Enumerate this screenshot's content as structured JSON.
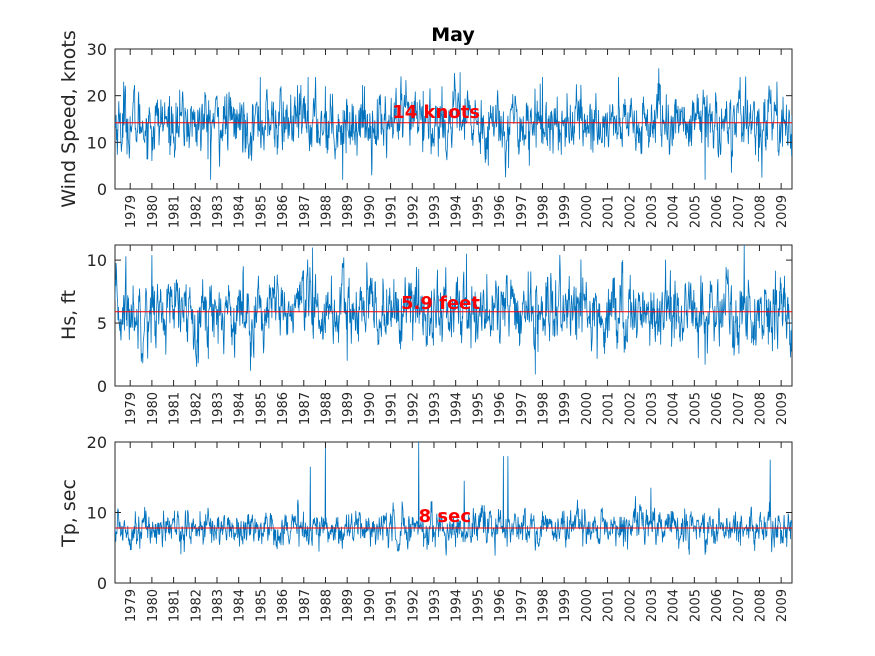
{
  "chart_data": [
    {
      "type": "line",
      "title": "May",
      "ylabel": "Wind Speed, knots",
      "ylim": [
        0,
        30
      ],
      "yticks": [
        0,
        10,
        20,
        30
      ],
      "xlim": [
        1978.7,
        2009.9
      ],
      "xtick_labels": [
        "1979",
        "1980",
        "1981",
        "1982",
        "1983",
        "1984",
        "1985",
        "1986",
        "1987",
        "1988",
        "1989",
        "1990",
        "1991",
        "1992",
        "1993",
        "1994",
        "1995",
        "1996",
        "1997",
        "1998",
        "1999",
        "2000",
        "2001",
        "2002",
        "2003",
        "2004",
        "2005",
        "2006",
        "2007",
        "2008",
        "2009"
      ],
      "series": [
        {
          "color": "#0072bd",
          "mean": 14.2,
          "spread": 3.2,
          "events": [
            {
              "x": 1979.0,
              "y": 8
            },
            {
              "x": 1979.1,
              "y": 23
            },
            {
              "x": 1980.4,
              "y": 6
            },
            {
              "x": 1983.1,
              "y": 2
            },
            {
              "x": 1985.4,
              "y": 24
            },
            {
              "x": 1987.6,
              "y": 24
            },
            {
              "x": 1988.4,
              "y": 22
            },
            {
              "x": 1989.2,
              "y": 2
            },
            {
              "x": 1990.2,
              "y": 22
            },
            {
              "x": 1992.9,
              "y": 21
            },
            {
              "x": 1994.6,
              "y": 25
            },
            {
              "x": 1995.9,
              "y": 5
            },
            {
              "x": 1997.8,
              "y": 5
            },
            {
              "x": 1998.4,
              "y": 24
            },
            {
              "x": 2001.9,
              "y": 24
            },
            {
              "x": 2005.9,
              "y": 2
            },
            {
              "x": 2007.5,
              "y": 24
            },
            {
              "x": 2009.2,
              "y": 23
            }
          ]
        },
        {
          "color": "#ff0000",
          "type": "hline",
          "y": 14.2
        }
      ],
      "annotation": {
        "text": "14 knots",
        "x": 1993.5,
        "y": 16.5
      }
    },
    {
      "type": "line",
      "ylabel": "Hs, ft",
      "ylim": [
        0,
        11.2
      ],
      "yticks": [
        0,
        5,
        10
      ],
      "xlim": [
        1978.7,
        2009.9
      ],
      "xtick_labels": [
        "1979",
        "1980",
        "1981",
        "1982",
        "1983",
        "1984",
        "1985",
        "1986",
        "1987",
        "1988",
        "1989",
        "1990",
        "1991",
        "1992",
        "1993",
        "1994",
        "1995",
        "1996",
        "1997",
        "1998",
        "1999",
        "2000",
        "2001",
        "2002",
        "2003",
        "2004",
        "2005",
        "2006",
        "2007",
        "2008",
        "2009"
      ],
      "series": [
        {
          "color": "#0072bd",
          "mean": 5.9,
          "spread": 1.3,
          "events": [
            {
              "x": 1979.2,
              "y": 10.3
            },
            {
              "x": 1980.4,
              "y": 10.4
            },
            {
              "x": 1987.8,
              "y": 11
            },
            {
              "x": 1989.4,
              "y": 2
            },
            {
              "x": 1992.7,
              "y": 9.3
            },
            {
              "x": 1994.9,
              "y": 10.5
            },
            {
              "x": 1995.1,
              "y": 3
            },
            {
              "x": 1998.2,
              "y": 2.7
            },
            {
              "x": 2002.1,
              "y": 10
            },
            {
              "x": 2005.9,
              "y": 1.7
            },
            {
              "x": 2007.7,
              "y": 11.2
            },
            {
              "x": 2008.8,
              "y": 3.3
            }
          ]
        },
        {
          "color": "#ff0000",
          "type": "hline",
          "y": 5.9
        }
      ],
      "annotation": {
        "text": "5.9 feet",
        "x": 1993.7,
        "y": 6.6
      }
    },
    {
      "type": "line",
      "ylabel": "Tp, sec",
      "ylim": [
        0,
        20
      ],
      "yticks": [
        0,
        10,
        20
      ],
      "xlim": [
        1978.7,
        2009.9
      ],
      "xtick_labels": [
        "1979",
        "1980",
        "1981",
        "1982",
        "1983",
        "1984",
        "1985",
        "1986",
        "1987",
        "1988",
        "1989",
        "1990",
        "1991",
        "1992",
        "1993",
        "1994",
        "1995",
        "1996",
        "1997",
        "1998",
        "1999",
        "2000",
        "2001",
        "2002",
        "2003",
        "2004",
        "2005",
        "2006",
        "2007",
        "2008",
        "2009"
      ],
      "series": [
        {
          "color": "#0072bd",
          "mean": 7.8,
          "spread": 1.2,
          "events": [
            {
              "x": 1987.7,
              "y": 16.5
            },
            {
              "x": 1988.4,
              "y": 20
            },
            {
              "x": 1992.7,
              "y": 20
            },
            {
              "x": 1994.8,
              "y": 14.5
            },
            {
              "x": 1996.6,
              "y": 18
            },
            {
              "x": 1996.8,
              "y": 18
            },
            {
              "x": 2003.4,
              "y": 13.5
            },
            {
              "x": 2008.9,
              "y": 17.5
            },
            {
              "x": 2005.9,
              "y": 4
            }
          ]
        },
        {
          "color": "#ff0000",
          "type": "hline",
          "y": 7.8
        }
      ],
      "annotation": {
        "text": "8 sec",
        "x": 1993.9,
        "y": 9.5
      }
    }
  ]
}
